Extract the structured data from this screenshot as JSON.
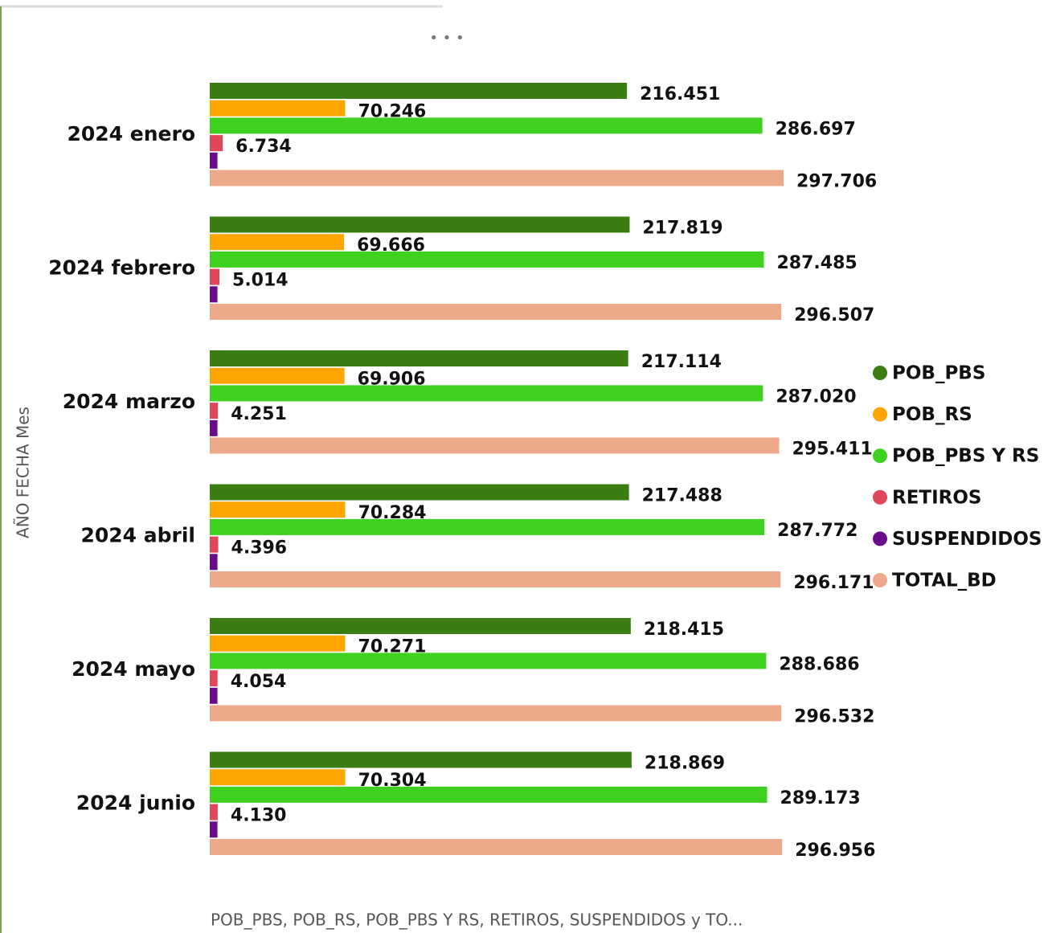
{
  "chart_data": {
    "type": "bar",
    "orientation": "horizontal",
    "y_axis_label": "AÑO FECHA Mes",
    "x_axis_label": "POB_PBS, POB_RS, POB_PBS Y RS, RETIROS, SUSPENDIDOS y TO...",
    "categories": [
      "2024 enero",
      "2024 febrero",
      "2024 marzo",
      "2024 abril",
      "2024 mayo",
      "2024 junio"
    ],
    "xlim": [
      0,
      300000
    ],
    "series": [
      {
        "name": "POB_PBS",
        "color": "#3a7d12",
        "values": [
          216451,
          217819,
          217114,
          217488,
          218415,
          218869
        ],
        "value_labels": [
          "216.451",
          "217.819",
          "217.114",
          "217.488",
          "218.415",
          "218.869"
        ]
      },
      {
        "name": "POB_RS",
        "color": "#ffa500",
        "values": [
          70246,
          69666,
          69906,
          70284,
          70271,
          70304
        ],
        "value_labels": [
          "70.246",
          "69.666",
          "69.906",
          "70.284",
          "70.271",
          "70.304"
        ]
      },
      {
        "name": "POB_PBS Y RS",
        "color": "#3fd11f",
        "values": [
          286697,
          287485,
          287020,
          287772,
          288686,
          289173
        ],
        "value_labels": [
          "286.697",
          "287.485",
          "287.020",
          "287.772",
          "288.686",
          "289.173"
        ]
      },
      {
        "name": "RETIROS",
        "color": "#e0475a",
        "values": [
          6734,
          5014,
          4251,
          4396,
          4054,
          4130
        ],
        "value_labels": [
          "6.734",
          "5.014",
          "4.251",
          "4.396",
          "4.054",
          "4.130"
        ]
      },
      {
        "name": "SUSPENDIDOS",
        "color": "#6a0c8a",
        "values": [
          4000,
          4000,
          4000,
          4000,
          4000,
          4000
        ]
      },
      {
        "name": "TOTAL_BD",
        "color": "#eea88a",
        "values": [
          297706,
          296507,
          295411,
          296171,
          296532,
          296956
        ],
        "value_labels": [
          "297.706",
          "296.507",
          "295.411",
          "296.171",
          "296.532",
          "296.956"
        ]
      }
    ],
    "legend": "right"
  }
}
